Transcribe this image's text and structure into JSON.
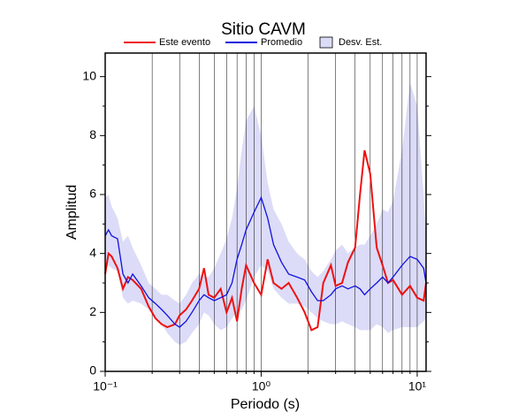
{
  "chart_data": {
    "type": "line",
    "title": "Sitio CAVM",
    "x_label": "Periodo (s)",
    "y_label": "Amplitud",
    "x_log": true,
    "xlim": [
      0.1,
      11.4
    ],
    "ylim": [
      0,
      10.8
    ],
    "xticks": [
      {
        "value": 0.1,
        "label": "10⁻¹"
      },
      {
        "value": 1,
        "label": "10⁰"
      },
      {
        "value": 10,
        "label": "10¹"
      }
    ],
    "xminor": [
      0.2,
      0.3,
      0.4,
      0.5,
      0.6,
      0.7,
      0.8,
      0.9,
      2,
      3,
      4,
      5,
      6,
      7,
      8,
      9
    ],
    "yticks": [
      0,
      2,
      4,
      6,
      8,
      10
    ],
    "yminor": [
      1,
      3,
      5,
      7,
      9
    ],
    "grid": true,
    "x": [
      0.1,
      0.105,
      0.11,
      0.12,
      0.13,
      0.14,
      0.15,
      0.17,
      0.19,
      0.21,
      0.23,
      0.25,
      0.28,
      0.3,
      0.33,
      0.36,
      0.4,
      0.43,
      0.46,
      0.5,
      0.55,
      0.6,
      0.65,
      0.7,
      0.75,
      0.8,
      0.9,
      1.0,
      1.1,
      1.2,
      1.35,
      1.5,
      1.7,
      1.9,
      2.1,
      2.3,
      2.5,
      2.8,
      3.0,
      3.3,
      3.6,
      4.0,
      4.3,
      4.6,
      5.0,
      5.5,
      6.0,
      6.5,
      7.0,
      8.0,
      9.0,
      10,
      11,
      11.4
    ],
    "band": {
      "name": "Desv. Est.",
      "color": "#dcdcf8",
      "upper": [
        5.9,
        6.0,
        5.6,
        5.2,
        4.4,
        4.6,
        4.2,
        3.6,
        3.0,
        2.8,
        2.6,
        2.6,
        2.4,
        2.3,
        2.6,
        3.0,
        3.3,
        3.2,
        3.2,
        3.5,
        4.0,
        4.5,
        5.2,
        6.2,
        7.5,
        8.5,
        9.0,
        8.0,
        6.4,
        5.5,
        5.0,
        4.4,
        4.0,
        3.8,
        3.4,
        3.2,
        3.4,
        3.8,
        4.1,
        4.3,
        4.0,
        4.2,
        4.3,
        4.3,
        4.6,
        5.0,
        5.5,
        5.4,
        5.8,
        7.5,
        9.8,
        9.0,
        6.0,
        4.5
      ],
      "lower": [
        3.5,
        3.6,
        3.5,
        3.4,
        2.5,
        2.3,
        2.4,
        2.3,
        2.1,
        1.8,
        1.6,
        1.3,
        1.0,
        0.9,
        1.0,
        1.3,
        1.6,
        2.0,
        1.9,
        1.6,
        1.4,
        1.5,
        1.8,
        2.0,
        2.1,
        2.4,
        3.2,
        3.6,
        3.4,
        2.8,
        2.5,
        2.3,
        2.3,
        2.2,
        2.0,
        1.8,
        1.7,
        1.6,
        1.6,
        1.7,
        1.6,
        1.5,
        1.4,
        1.4,
        1.4,
        1.6,
        1.5,
        1.3,
        1.4,
        1.5,
        1.5,
        1.5,
        1.7,
        1.8
      ]
    },
    "series": [
      {
        "name": "Este evento",
        "color": "#ee1111",
        "values": [
          3.3,
          4.0,
          3.9,
          3.5,
          2.8,
          3.2,
          3.1,
          2.8,
          2.2,
          1.8,
          1.6,
          1.5,
          1.6,
          1.9,
          2.1,
          2.4,
          2.8,
          3.5,
          2.6,
          2.5,
          2.8,
          2.0,
          2.5,
          1.7,
          2.8,
          3.6,
          3.0,
          2.6,
          3.8,
          3.0,
          2.8,
          3.0,
          2.5,
          2.0,
          1.4,
          1.5,
          3.0,
          3.6,
          2.9,
          3.0,
          3.7,
          4.2,
          6.0,
          7.5,
          6.7,
          4.2,
          3.6,
          3.0,
          3.1,
          2.6,
          2.9,
          2.5,
          2.4,
          3.0
        ]
      },
      {
        "name": "Promedio",
        "color": "#1111dd",
        "values": [
          4.6,
          4.8,
          4.6,
          4.5,
          3.3,
          3.0,
          3.3,
          2.9,
          2.5,
          2.3,
          2.1,
          1.9,
          1.6,
          1.5,
          1.7,
          2.0,
          2.4,
          2.6,
          2.5,
          2.4,
          2.5,
          2.6,
          3.0,
          3.8,
          4.3,
          4.8,
          5.4,
          5.9,
          5.2,
          4.3,
          3.7,
          3.3,
          3.2,
          3.1,
          2.7,
          2.4,
          2.4,
          2.6,
          2.8,
          2.9,
          2.8,
          2.9,
          2.8,
          2.6,
          2.8,
          3.0,
          3.2,
          3.0,
          3.2,
          3.6,
          3.9,
          3.8,
          3.5,
          3.0
        ]
      }
    ]
  }
}
